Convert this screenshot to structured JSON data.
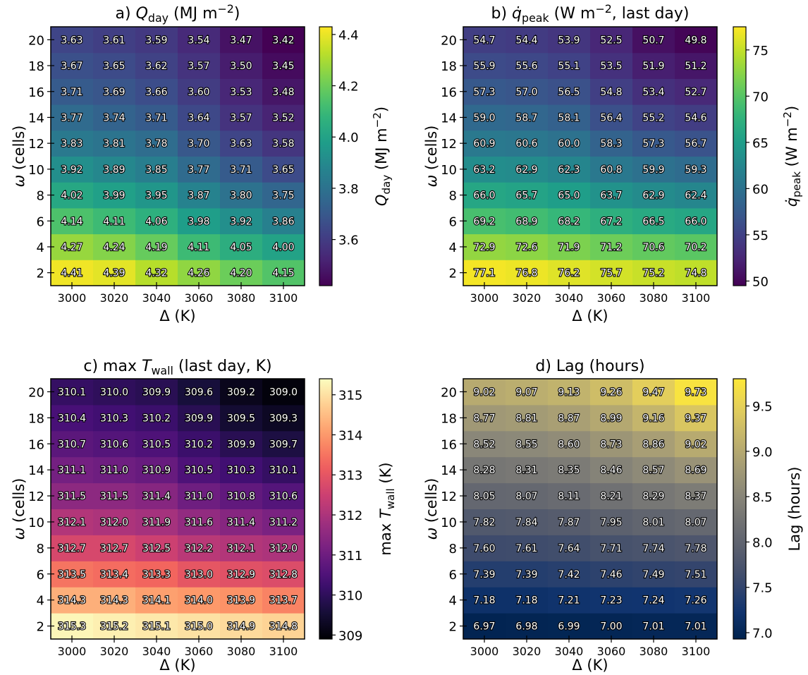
{
  "chart_data": [
    {
      "type": "heatmap",
      "title": "a) Q_day (MJ m⁻²)",
      "title_parts": {
        "prefix": "a) ",
        "symbol": "Q",
        "sub": "day",
        "suffix": " (MJ m",
        "sup": "−2",
        "end": ")"
      },
      "xlabel": "Δ (K)",
      "ylabel": "ω (cells)",
      "x": [
        3000,
        3020,
        3040,
        3060,
        3080,
        3100
      ],
      "y": [
        2,
        4,
        6,
        8,
        10,
        12,
        14,
        16,
        18,
        20
      ],
      "values": [
        [
          "4.41",
          "4.39",
          "4.32",
          "4.26",
          "4.20",
          "4.15"
        ],
        [
          "4.27",
          "4.24",
          "4.19",
          "4.11",
          "4.05",
          "4.00"
        ],
        [
          "4.14",
          "4.11",
          "4.06",
          "3.98",
          "3.92",
          "3.86"
        ],
        [
          "4.02",
          "3.99",
          "3.95",
          "3.87",
          "3.80",
          "3.75"
        ],
        [
          "3.92",
          "3.89",
          "3.85",
          "3.77",
          "3.71",
          "3.65"
        ],
        [
          "3.83",
          "3.81",
          "3.78",
          "3.70",
          "3.63",
          "3.58"
        ],
        [
          "3.77",
          "3.74",
          "3.71",
          "3.64",
          "3.57",
          "3.52"
        ],
        [
          "3.71",
          "3.69",
          "3.66",
          "3.60",
          "3.53",
          "3.48"
        ],
        [
          "3.67",
          "3.65",
          "3.62",
          "3.57",
          "3.50",
          "3.45"
        ],
        [
          "3.63",
          "3.61",
          "3.59",
          "3.54",
          "3.47",
          "3.42"
        ]
      ],
      "colormap": "viridis",
      "vmin": 3.42,
      "vmax": 4.43,
      "colorbar": {
        "label": "Q_day (MJ m⁻²)",
        "label_parts": {
          "symbol": "Q",
          "sub": "day",
          "suffix": " (MJ m",
          "sup": "−2",
          "end": ")"
        },
        "ticks": [
          "3.6",
          "3.8",
          "4.0",
          "4.2",
          "4.4"
        ]
      }
    },
    {
      "type": "heatmap",
      "title": "b) q̇_peak (W m⁻², last day)",
      "title_parts": {
        "prefix": "b) ",
        "symbol": "q̇",
        "sub": "peak",
        "suffix": " (W m",
        "sup": "−2",
        "end": ", last day)"
      },
      "xlabel": "Δ (K)",
      "ylabel": "ω (cells)",
      "x": [
        3000,
        3020,
        3040,
        3060,
        3080,
        3100
      ],
      "y": [
        2,
        4,
        6,
        8,
        10,
        12,
        14,
        16,
        18,
        20
      ],
      "values": [
        [
          "77.1",
          "76.8",
          "76.2",
          "75.7",
          "75.2",
          "74.8"
        ],
        [
          "72.9",
          "72.6",
          "71.9",
          "71.2",
          "70.6",
          "70.2"
        ],
        [
          "69.2",
          "68.9",
          "68.2",
          "67.2",
          "66.5",
          "66.0"
        ],
        [
          "66.0",
          "65.7",
          "65.0",
          "63.7",
          "62.9",
          "62.4"
        ],
        [
          "63.2",
          "62.9",
          "62.3",
          "60.8",
          "59.9",
          "59.3"
        ],
        [
          "60.9",
          "60.6",
          "60.0",
          "58.3",
          "57.3",
          "56.7"
        ],
        [
          "59.0",
          "58.7",
          "58.1",
          "56.4",
          "55.2",
          "54.6"
        ],
        [
          "57.3",
          "57.0",
          "56.5",
          "54.8",
          "53.4",
          "52.7"
        ],
        [
          "55.9",
          "55.6",
          "55.1",
          "53.5",
          "51.9",
          "51.2"
        ],
        [
          "54.7",
          "54.4",
          "53.9",
          "52.5",
          "50.7",
          "49.8"
        ]
      ],
      "colormap": "viridis",
      "vmin": 49.5,
      "vmax": 77.5,
      "colorbar": {
        "label": "q̇_peak (W m⁻²)",
        "label_parts": {
          "symbol": "q̇",
          "sub": "peak",
          "suffix": " (W m",
          "sup": "−2",
          "end": ")"
        },
        "ticks": [
          "50",
          "55",
          "60",
          "65",
          "70",
          "75"
        ]
      }
    },
    {
      "type": "heatmap",
      "title": "c) max T_wall (last day, K)",
      "title_parts": {
        "prefix": "c) max ",
        "symbol": "T",
        "sub": "wall",
        "suffix": " (last day, K)",
        "sup": "",
        "end": ""
      },
      "xlabel": "Δ (K)",
      "ylabel": "ω (cells)",
      "x": [
        3000,
        3020,
        3040,
        3060,
        3080,
        3100
      ],
      "y": [
        2,
        4,
        6,
        8,
        10,
        12,
        14,
        16,
        18,
        20
      ],
      "values": [
        [
          "315.3",
          "315.2",
          "315.1",
          "315.0",
          "314.9",
          "314.8"
        ],
        [
          "314.3",
          "314.3",
          "314.1",
          "314.0",
          "313.9",
          "313.7"
        ],
        [
          "313.5",
          "313.4",
          "313.3",
          "313.0",
          "312.9",
          "312.8"
        ],
        [
          "312.7",
          "312.7",
          "312.5",
          "312.2",
          "312.1",
          "312.0"
        ],
        [
          "312.1",
          "312.0",
          "311.9",
          "311.6",
          "311.4",
          "311.2"
        ],
        [
          "311.5",
          "311.5",
          "311.4",
          "311.0",
          "310.8",
          "310.6"
        ],
        [
          "311.1",
          "311.0",
          "310.9",
          "310.5",
          "310.3",
          "310.1"
        ],
        [
          "310.7",
          "310.6",
          "310.5",
          "310.2",
          "309.9",
          "309.7"
        ],
        [
          "310.4",
          "310.3",
          "310.2",
          "309.9",
          "309.5",
          "309.3"
        ],
        [
          "310.1",
          "310.0",
          "309.9",
          "309.6",
          "309.2",
          "309.0"
        ]
      ],
      "colormap": "magma",
      "vmin": 308.9,
      "vmax": 315.4,
      "colorbar": {
        "label": "max T_wall (K)",
        "label_parts": {
          "prefix": "max ",
          "symbol": "T",
          "sub": "wall",
          "suffix": " (K)",
          "sup": "",
          "end": ""
        },
        "ticks": [
          "309",
          "310",
          "311",
          "312",
          "313",
          "314",
          "315"
        ]
      }
    },
    {
      "type": "heatmap",
      "title": "d) Lag (hours)",
      "title_parts": {
        "prefix": "d) Lag (hours)",
        "symbol": "",
        "sub": "",
        "suffix": "",
        "sup": "",
        "end": ""
      },
      "xlabel": "Δ (K)",
      "ylabel": "ω (cells)",
      "x": [
        3000,
        3020,
        3040,
        3060,
        3080,
        3100
      ],
      "y": [
        2,
        4,
        6,
        8,
        10,
        12,
        14,
        16,
        18,
        20
      ],
      "values": [
        [
          "6.97",
          "6.98",
          "6.99",
          "7.00",
          "7.01",
          "7.01"
        ],
        [
          "7.18",
          "7.18",
          "7.21",
          "7.23",
          "7.24",
          "7.26"
        ],
        [
          "7.39",
          "7.39",
          "7.42",
          "7.46",
          "7.49",
          "7.51"
        ],
        [
          "7.60",
          "7.61",
          "7.64",
          "7.71",
          "7.74",
          "7.78"
        ],
        [
          "7.82",
          "7.84",
          "7.87",
          "7.95",
          "8.01",
          "8.07"
        ],
        [
          "8.05",
          "8.07",
          "8.11",
          "8.21",
          "8.29",
          "8.37"
        ],
        [
          "8.28",
          "8.31",
          "8.35",
          "8.46",
          "8.57",
          "8.69"
        ],
        [
          "8.52",
          "8.55",
          "8.60",
          "8.73",
          "8.86",
          "9.02"
        ],
        [
          "8.77",
          "8.81",
          "8.87",
          "8.99",
          "9.16",
          "9.37"
        ],
        [
          "9.02",
          "9.07",
          "9.13",
          "9.26",
          "9.47",
          "9.73"
        ]
      ],
      "colormap": "cividis",
      "vmin": 6.93,
      "vmax": 9.8,
      "colorbar": {
        "label": "Lag (hours)",
        "label_parts": {
          "prefix": "Lag (hours)",
          "symbol": "",
          "sub": "",
          "suffix": "",
          "sup": "",
          "end": ""
        },
        "ticks": [
          "7.0",
          "7.5",
          "8.0",
          "8.5",
          "9.0",
          "9.5"
        ]
      }
    }
  ]
}
